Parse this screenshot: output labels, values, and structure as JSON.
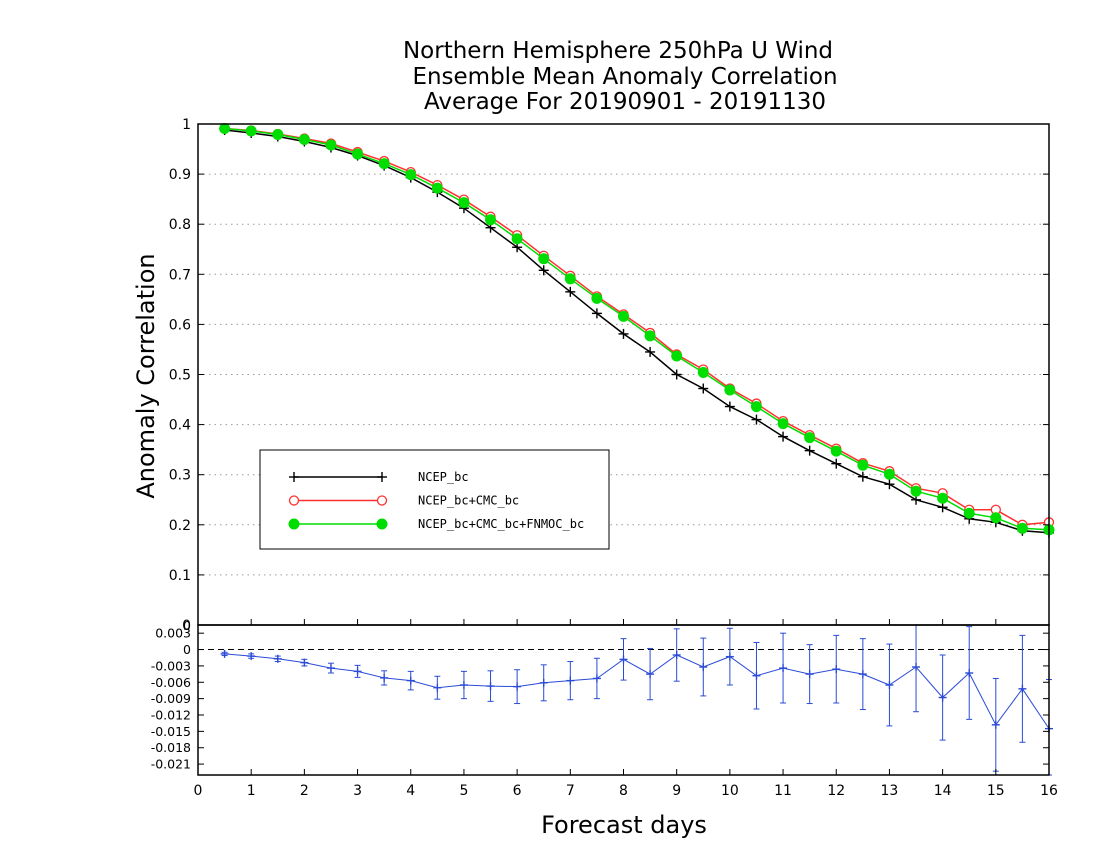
{
  "chart_data": [
    {
      "type": "line",
      "title_lines": [
        "Northern Hemisphere 250hPa U Wind",
        "Ensemble Mean Anomaly Correlation",
        "Average For 20190901 - 20191130"
      ],
      "xlabel": "Forecast days",
      "ylabel": "Anomaly Correlation",
      "xlim": [
        0,
        16
      ],
      "ylim": [
        0,
        1
      ],
      "x_ticks": [
        "0",
        "1",
        "2",
        "3",
        "4",
        "5",
        "6",
        "7",
        "8",
        "9",
        "10",
        "11",
        "12",
        "13",
        "14",
        "15",
        "16"
      ],
      "y_ticks": [
        "0",
        "0.1",
        "0.2",
        "0.3",
        "0.4",
        "0.5",
        "0.6",
        "0.7",
        "0.8",
        "0.9",
        "1"
      ],
      "grid": true,
      "legend_position": "left-lower",
      "x": [
        0.5,
        1,
        1.5,
        2,
        2.5,
        3,
        3.5,
        4,
        4.5,
        5,
        5.5,
        6,
        6.5,
        7,
        7.5,
        8,
        8.5,
        9,
        9.5,
        10,
        10.5,
        11,
        11.5,
        12,
        12.5,
        13,
        13.5,
        14,
        14.5,
        15,
        15.5,
        16
      ],
      "series": [
        {
          "name": "NCEP_bc",
          "color": "#000000",
          "marker": "plus",
          "values": [
            0.988,
            0.982,
            0.975,
            0.965,
            0.953,
            0.937,
            0.917,
            0.893,
            0.864,
            0.832,
            0.793,
            0.754,
            0.708,
            0.665,
            0.622,
            0.581,
            0.545,
            0.5,
            0.472,
            0.436,
            0.41,
            0.376,
            0.348,
            0.322,
            0.296,
            0.281,
            0.25,
            0.235,
            0.212,
            0.205,
            0.188,
            0.184
          ]
        },
        {
          "name": "NCEP_bc+CMC_bc",
          "color": "#ff3030",
          "marker": "open-circle",
          "values": [
            0.991,
            0.987,
            0.98,
            0.971,
            0.961,
            0.944,
            0.926,
            0.904,
            0.878,
            0.849,
            0.815,
            0.778,
            0.737,
            0.697,
            0.656,
            0.62,
            0.583,
            0.54,
            0.51,
            0.472,
            0.442,
            0.407,
            0.379,
            0.352,
            0.323,
            0.307,
            0.273,
            0.263,
            0.23,
            0.23,
            0.2,
            0.205
          ]
        },
        {
          "name": "NCEP_bc+CMC_bc+FNMOC_bc",
          "color": "#00dd00",
          "marker": "filled-circle",
          "values": [
            0.991,
            0.986,
            0.979,
            0.969,
            0.958,
            0.94,
            0.921,
            0.899,
            0.872,
            0.843,
            0.809,
            0.771,
            0.731,
            0.691,
            0.652,
            0.616,
            0.577,
            0.537,
            0.504,
            0.469,
            0.436,
            0.402,
            0.374,
            0.347,
            0.319,
            0.301,
            0.267,
            0.253,
            0.223,
            0.214,
            0.193,
            0.19
          ]
        }
      ]
    },
    {
      "type": "line",
      "xlim": [
        0,
        16
      ],
      "ylim": [
        -0.023,
        0.0045
      ],
      "y_ticks": [
        "0.003",
        "0",
        "-0.003",
        "-0.006",
        "-0.009",
        "-0.012",
        "-0.015",
        "-0.018",
        "-0.021"
      ],
      "zero_label": "0",
      "reference_line": 0,
      "error_bars": true,
      "x": [
        0.5,
        1,
        1.5,
        2,
        2.5,
        3,
        3.5,
        4,
        4.5,
        5,
        5.5,
        6,
        6.5,
        7,
        7.5,
        8,
        8.5,
        9,
        9.5,
        10,
        10.5,
        11,
        11.5,
        12,
        12.5,
        13,
        13.5,
        14,
        14.5,
        15,
        15.5,
        16
      ],
      "series": [
        {
          "color": "#2a4bd7",
          "marker": "plus",
          "values": [
            -0.0008,
            -0.0012,
            -0.0017,
            -0.0024,
            -0.0034,
            -0.004,
            -0.0052,
            -0.0057,
            -0.007,
            -0.0065,
            -0.0067,
            -0.0068,
            -0.0061,
            -0.0057,
            -0.0053,
            -0.0018,
            -0.0045,
            -0.001,
            -0.0032,
            -0.0013,
            -0.0048,
            -0.0034,
            -0.0045,
            -0.0036,
            -0.0045,
            -0.0065,
            -0.0032,
            -0.0088,
            -0.0043,
            -0.0138,
            -0.0072,
            -0.0145
          ],
          "errors": [
            0.0003,
            0.0004,
            0.0005,
            0.0006,
            0.0009,
            0.0011,
            0.0013,
            0.0017,
            0.0021,
            0.0025,
            0.0028,
            0.0031,
            0.0033,
            0.0035,
            0.0037,
            0.0038,
            0.0047,
            0.0048,
            0.0053,
            0.0052,
            0.0061,
            0.0064,
            0.0054,
            0.0062,
            0.0065,
            0.0075,
            0.0082,
            0.0078,
            0.0085,
            0.0085,
            0.0098,
            0.009
          ]
        }
      ]
    }
  ]
}
